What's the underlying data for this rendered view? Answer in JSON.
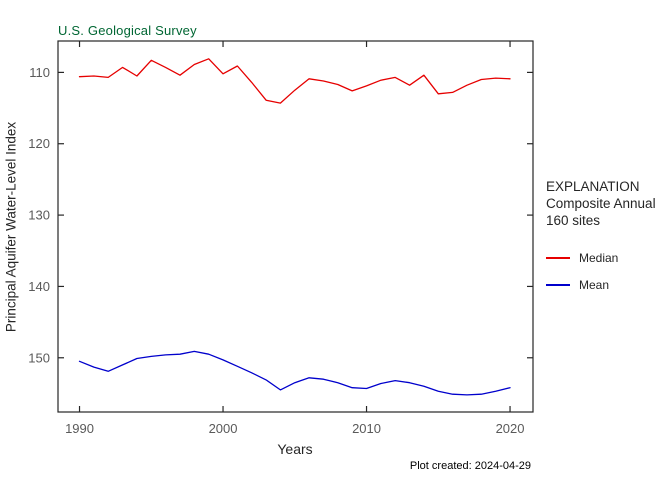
{
  "header": {
    "agency": "U.S. Geological Survey"
  },
  "footer": {
    "created": "Plot created: 2024-04-29"
  },
  "legend": {
    "title": "EXPLANATION",
    "subtitle1": "Composite Annual",
    "subtitle2": "160 sites",
    "items": [
      {
        "label": "Median",
        "color": "#e60000"
      },
      {
        "label": "Mean",
        "color": "#0000cc"
      }
    ]
  },
  "colors": {
    "axis": "#262626",
    "tick_label": "#5a5a5a",
    "title_green": "#006633",
    "median_red": "#e60000",
    "mean_blue": "#0000cc"
  },
  "chart_data": {
    "type": "line",
    "title": "",
    "xlabel": "Years",
    "ylabel": "Principal Aquifer Water-Level Index",
    "x": [
      1990,
      1991,
      1992,
      1993,
      1994,
      1995,
      1996,
      1997,
      1998,
      1999,
      2000,
      2001,
      2002,
      2003,
      2004,
      2005,
      2006,
      2007,
      2008,
      2009,
      2010,
      2011,
      2012,
      2013,
      2014,
      2015,
      2016,
      2017,
      2018,
      2019,
      2020
    ],
    "series": [
      {
        "name": "Median",
        "color": "#e60000",
        "values": [
          110.6,
          110.5,
          110.7,
          109.3,
          110.5,
          108.3,
          109.3,
          110.4,
          108.9,
          108.1,
          110.2,
          109.1,
          111.4,
          113.9,
          114.3,
          112.5,
          110.9,
          111.2,
          111.7,
          112.6,
          111.9,
          111.1,
          110.7,
          111.8,
          110.4,
          113.0,
          112.8,
          111.8,
          111.0,
          110.8,
          110.9
        ]
      },
      {
        "name": "Mean",
        "color": "#0000cc",
        "values": [
          150.5,
          151.3,
          151.9,
          151.0,
          150.1,
          149.8,
          149.6,
          149.5,
          149.1,
          149.5,
          150.3,
          151.2,
          152.1,
          153.1,
          154.5,
          153.5,
          152.8,
          153.0,
          153.5,
          154.2,
          154.3,
          153.6,
          153.2,
          153.5,
          154.0,
          154.7,
          155.1,
          155.2,
          155.1,
          154.7,
          154.2
        ]
      }
    ],
    "xlim": [
      1988.5,
      2021.6
    ],
    "ylim": [
      105.6,
      157.6
    ],
    "y_inverted": true,
    "x_ticks": [
      1990,
      2000,
      2010,
      2020
    ],
    "y_ticks": [
      110,
      120,
      130,
      140,
      150
    ],
    "grid": false,
    "legend_position": "right"
  }
}
